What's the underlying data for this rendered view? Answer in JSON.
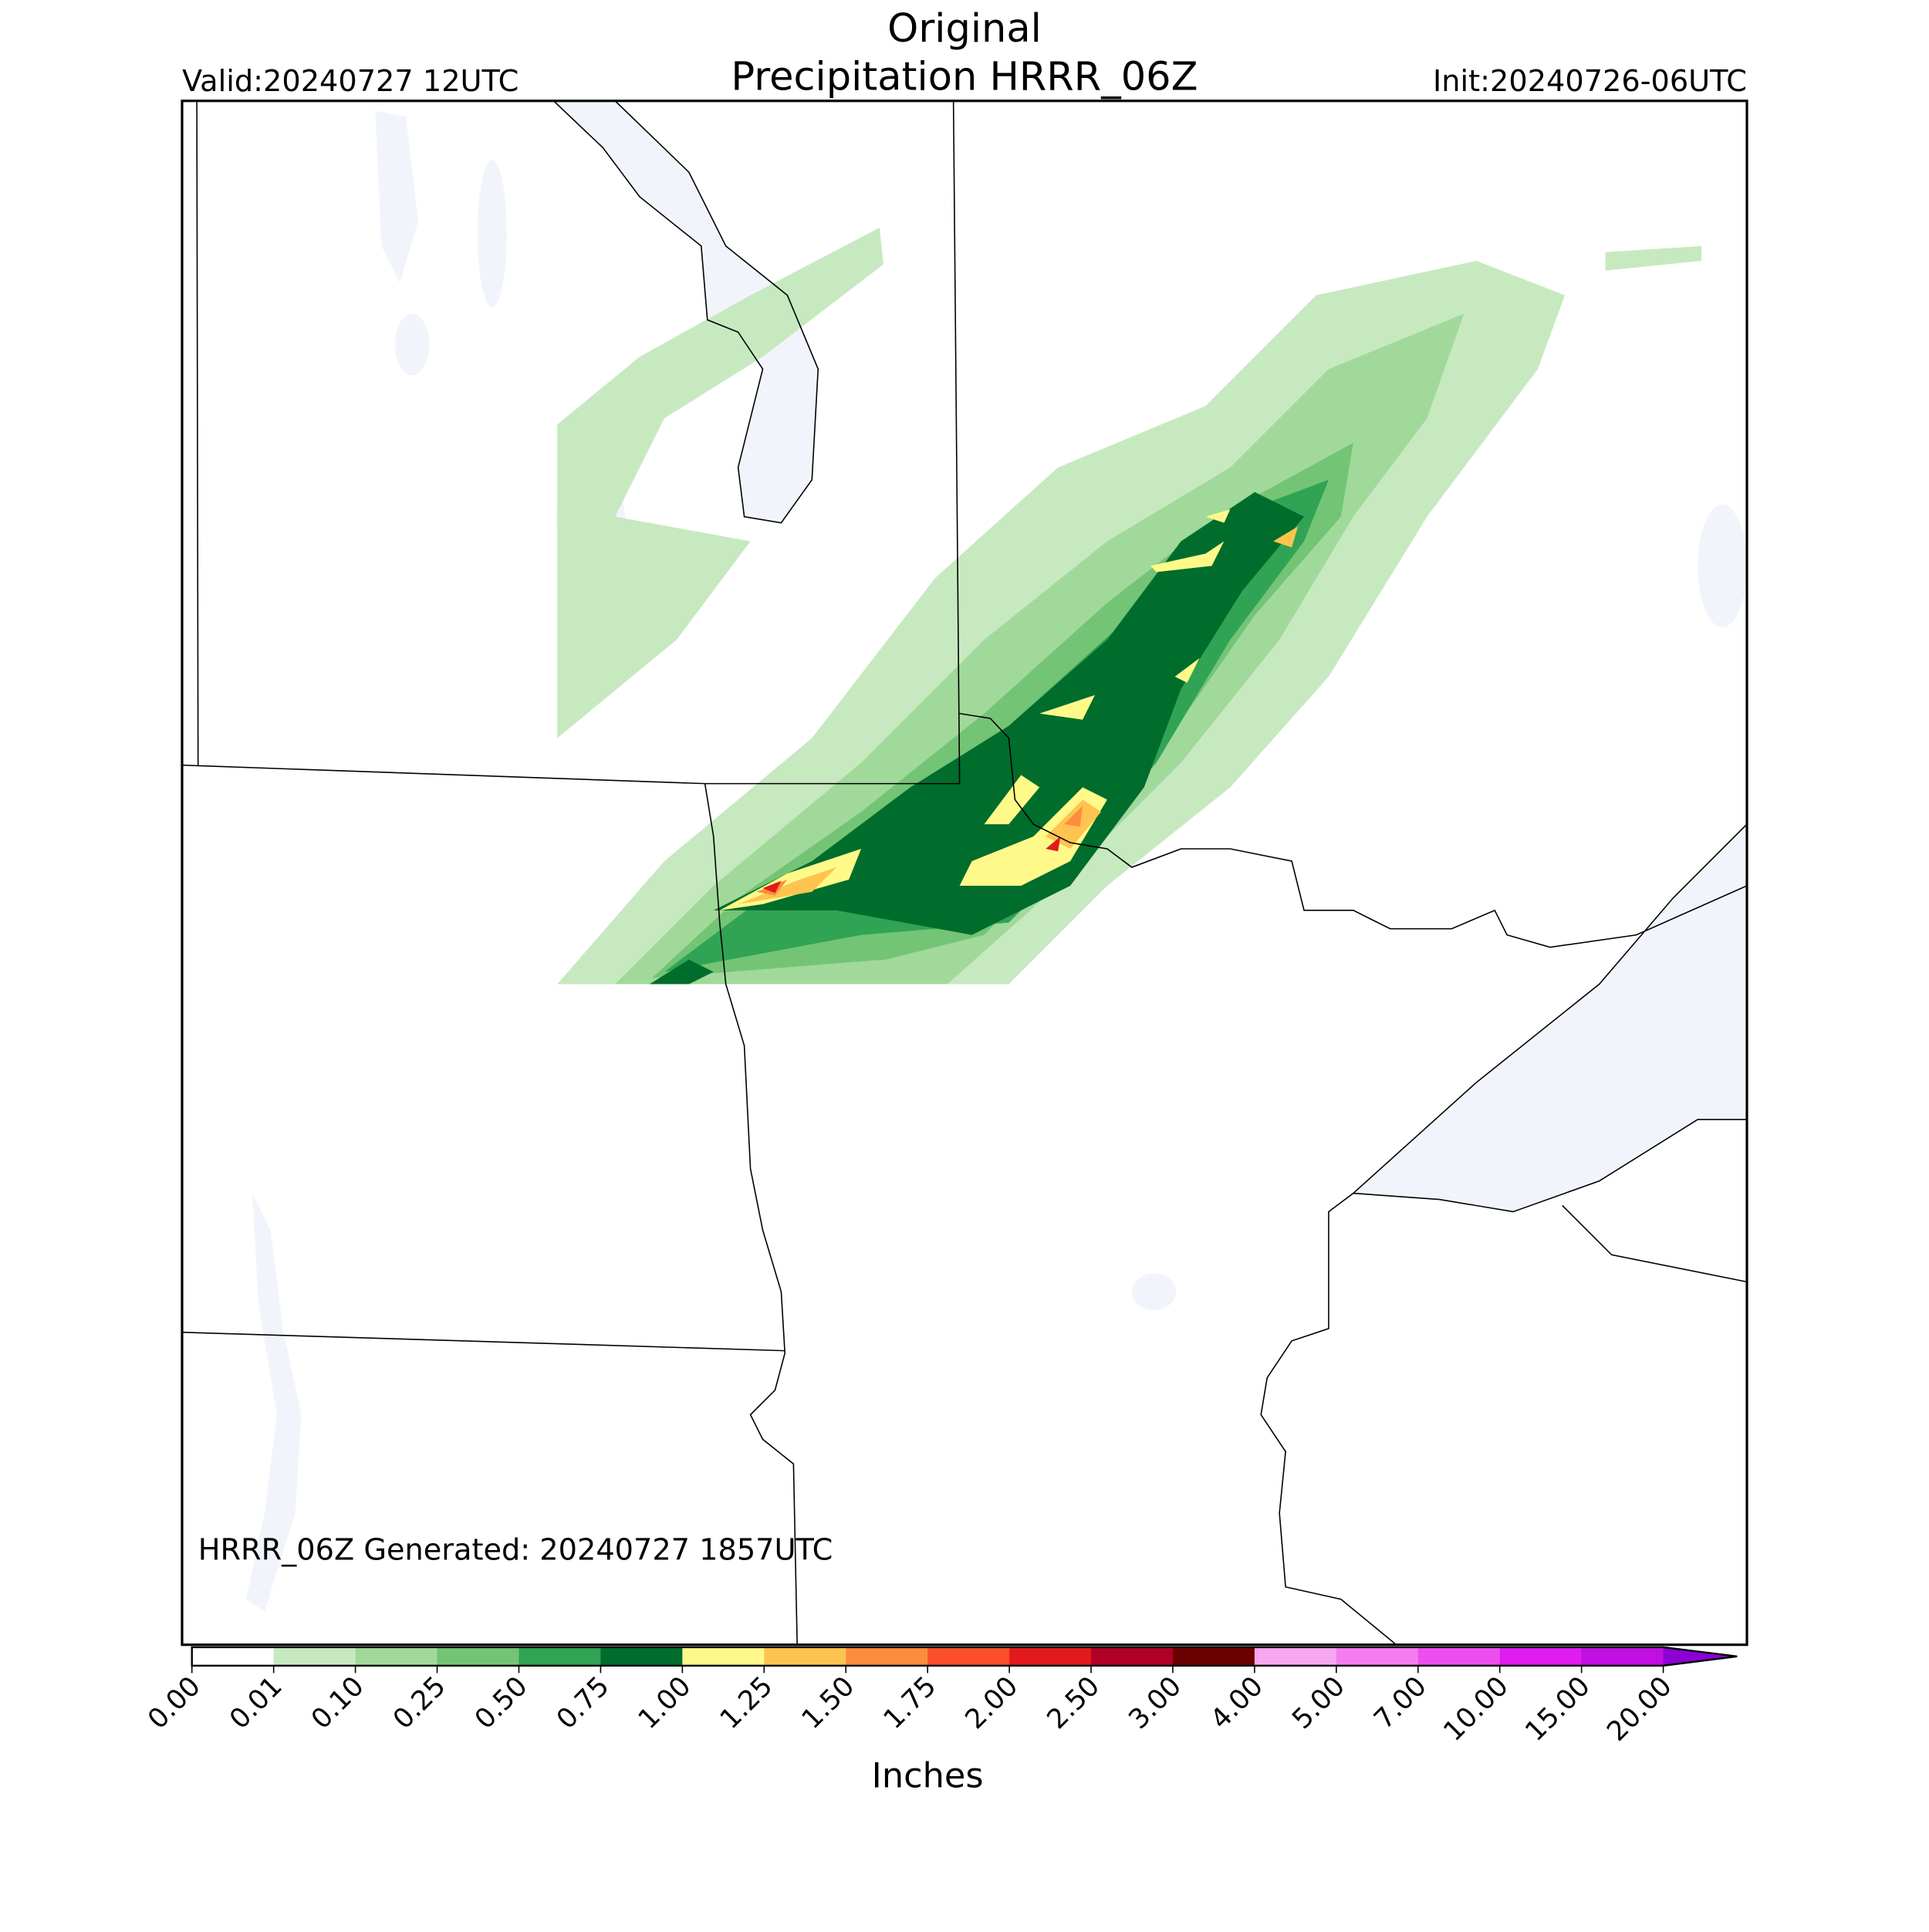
{
  "header": {
    "title_line1": "Original",
    "title_line2": "Precipitation HRRR_06Z",
    "valid": "Valid:20240727 12UTC",
    "init": "Init:20240726-06UTC"
  },
  "annotation": "HRRR_06Z Generated: 20240727 1857UTC",
  "colorbar": {
    "label": "Inches",
    "ticks": [
      "0.00",
      "0.01",
      "0.10",
      "0.25",
      "0.50",
      "0.75",
      "1.00",
      "1.25",
      "1.50",
      "1.75",
      "2.00",
      "2.50",
      "3.00",
      "4.00",
      "5.00",
      "7.00",
      "10.00",
      "15.00",
      "20.00"
    ],
    "colors": [
      "#ffffff",
      "#c7e9c0",
      "#a1d99b",
      "#74c476",
      "#31a354",
      "#006d2c",
      "#fff98a",
      "#fec44f",
      "#fd8d3c",
      "#fc4e2a",
      "#e31a1c",
      "#b10026",
      "#6b0000",
      "#f7a6f0",
      "#f57cf0",
      "#ee4ef0",
      "#e01cf0",
      "#c00fe0"
    ],
    "extend_color": "#8c00d4"
  }
}
